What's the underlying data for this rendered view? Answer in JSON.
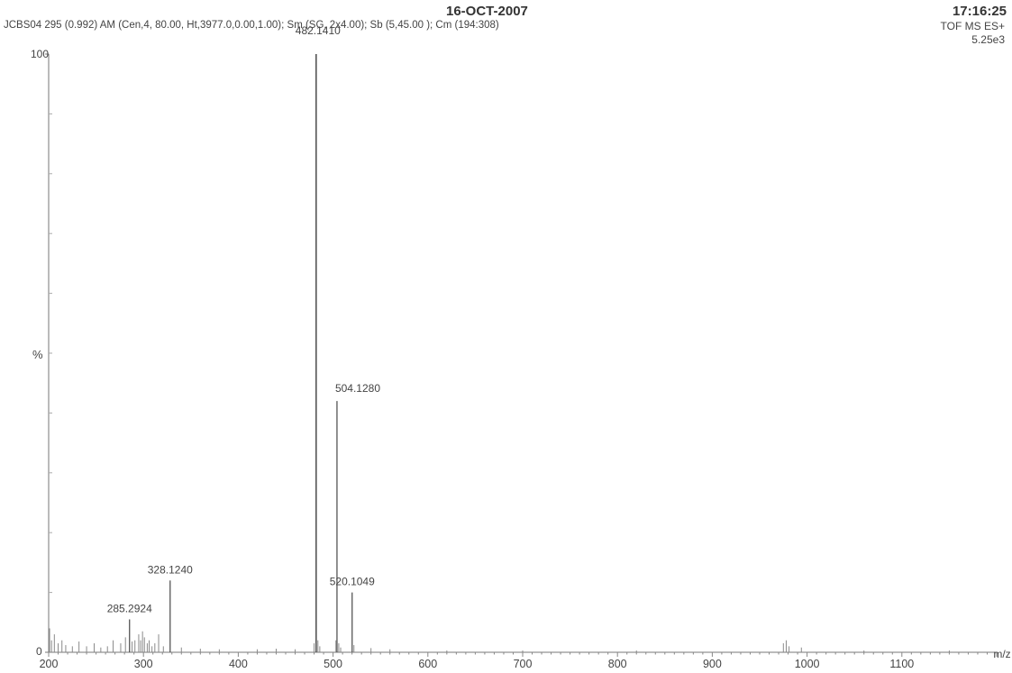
{
  "header": {
    "date": "16-OCT-2007",
    "time": "17:16:25",
    "description": "JCBS04 295 (0.992) AM (Cen,4, 80.00, Ht,3977.0,0.00,1.00); Sm (SG, 2x4.00); Sb (5,45.00 ); Cm (194:308)",
    "mode": "TOF MS ES+",
    "max_intensity": "5.25e3"
  },
  "chart_data": {
    "type": "bar",
    "title": "",
    "xlabel": "m/z",
    "ylabel": "%",
    "xlim": [
      200,
      1200
    ],
    "ylim": [
      0,
      100
    ],
    "x_ticks": [
      200,
      300,
      400,
      500,
      600,
      700,
      800,
      900,
      1000,
      1100
    ],
    "y_ticks": [
      0,
      100
    ],
    "peaks": [
      {
        "mz": 482.141,
        "rel": 100,
        "label": "482.1410"
      },
      {
        "mz": 504.128,
        "rel": 42,
        "label": "504.1280"
      },
      {
        "mz": 328.124,
        "rel": 12,
        "label": "328.1240"
      },
      {
        "mz": 520.1049,
        "rel": 10,
        "label": "520.1049"
      },
      {
        "mz": 285.2924,
        "rel": 5.5,
        "label": "285.2924"
      }
    ],
    "minor_peaks": [
      {
        "mz": 201,
        "rel": 4
      },
      {
        "mz": 203,
        "rel": 2
      },
      {
        "mz": 206,
        "rel": 3
      },
      {
        "mz": 210,
        "rel": 1.5
      },
      {
        "mz": 214,
        "rel": 2
      },
      {
        "mz": 218,
        "rel": 1.2
      },
      {
        "mz": 225,
        "rel": 1
      },
      {
        "mz": 232,
        "rel": 1.8
      },
      {
        "mz": 240,
        "rel": 1
      },
      {
        "mz": 248,
        "rel": 1.5
      },
      {
        "mz": 255,
        "rel": 0.8
      },
      {
        "mz": 262,
        "rel": 1
      },
      {
        "mz": 268,
        "rel": 2
      },
      {
        "mz": 276,
        "rel": 1.5
      },
      {
        "mz": 281,
        "rel": 2.5
      },
      {
        "mz": 288,
        "rel": 1.8
      },
      {
        "mz": 291,
        "rel": 2
      },
      {
        "mz": 295,
        "rel": 3
      },
      {
        "mz": 297,
        "rel": 2
      },
      {
        "mz": 299,
        "rel": 3.5
      },
      {
        "mz": 301,
        "rel": 2.5
      },
      {
        "mz": 304,
        "rel": 1.5
      },
      {
        "mz": 306,
        "rel": 2
      },
      {
        "mz": 309,
        "rel": 1
      },
      {
        "mz": 312,
        "rel": 1.5
      },
      {
        "mz": 316,
        "rel": 3
      },
      {
        "mz": 321,
        "rel": 1
      },
      {
        "mz": 340,
        "rel": 0.8
      },
      {
        "mz": 360,
        "rel": 0.6
      },
      {
        "mz": 380,
        "rel": 0.5
      },
      {
        "mz": 420,
        "rel": 0.5
      },
      {
        "mz": 440,
        "rel": 0.6
      },
      {
        "mz": 460,
        "rel": 0.5
      },
      {
        "mz": 480,
        "rel": 1.5
      },
      {
        "mz": 484,
        "rel": 2
      },
      {
        "mz": 486,
        "rel": 1
      },
      {
        "mz": 503,
        "rel": 2
      },
      {
        "mz": 506,
        "rel": 1.5
      },
      {
        "mz": 508,
        "rel": 0.8
      },
      {
        "mz": 522,
        "rel": 1.2
      },
      {
        "mz": 540,
        "rel": 0.7
      },
      {
        "mz": 560,
        "rel": 0.5
      },
      {
        "mz": 620,
        "rel": 0.3
      },
      {
        "mz": 700,
        "rel": 0.3
      },
      {
        "mz": 820,
        "rel": 0.3
      },
      {
        "mz": 975,
        "rel": 1.5
      },
      {
        "mz": 978,
        "rel": 2
      },
      {
        "mz": 981,
        "rel": 1
      },
      {
        "mz": 994,
        "rel": 0.8
      },
      {
        "mz": 1060,
        "rel": 0.3
      },
      {
        "mz": 1150,
        "rel": 0.3
      }
    ]
  }
}
